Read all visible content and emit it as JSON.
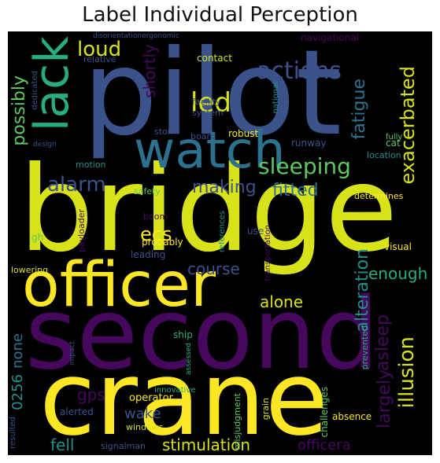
{
  "title": "Label Individual Perception",
  "palette": {
    "purple": "#46085c",
    "indigo": "#3b528b",
    "blue": "#2c728e",
    "teal": "#21908d",
    "green": "#27ad81",
    "lime": "#5ec962",
    "yellow": "#d8e219",
    "bright": "#fde725"
  },
  "words": {
    "pilot": "pilot",
    "bridge": "bridge",
    "second": "second",
    "crane": "crane",
    "officer": "officer",
    "watch": "watch",
    "lack": "lack",
    "sleeping": "sleeping",
    "actions": "actions",
    "led": "led",
    "loud": "loud",
    "shortly": "shortly",
    "alarm": "alarm",
    "making": "making",
    "fitted": "fitted",
    "fatigue": "fatigue",
    "exacerbated": "exacerbated",
    "possibly": "possibly",
    "ecs": "ecs",
    "course": "course",
    "alone": "alone",
    "enough": "enough",
    "alteration": "alteration",
    "asleep": "asleep",
    "illusion": "illusion",
    "largely": "largely",
    "gps": "gps",
    "wake": "wake",
    "fell": "fell",
    "stimulation": "stimulation",
    "officera": "officera",
    "none": "none",
    "num0256": "0256",
    "navigational": "navigational",
    "disorientationergonomic": "disorientationergonomic",
    "relative": "relative",
    "contact": "contact",
    "facility": "facility",
    "system": "system",
    "national": "national",
    "fully": "fully",
    "cat": "cat",
    "location": "location",
    "runway": "runway",
    "robust": "robust",
    "board": "board",
    "storm": "storm",
    "dedicated": "dedicated",
    "design": "design",
    "motion": "motion",
    "safety": "safety",
    "determines": "determines",
    "boom": "boom",
    "payloader": "payloader",
    "gh": "gh",
    "probably": "probably",
    "leading": "leading",
    "use": "use",
    "references": "references",
    "transportation": "transportation",
    "visual": "visual",
    "lowering": "lowering",
    "impact": "impact",
    "ship": "ship",
    "assessed": "assessed",
    "prevented": "prevented",
    "innovative": "innovative",
    "operator": "operator",
    "misjudgment": "misjudgment",
    "grain": "grain",
    "challenges": "challenges",
    "absence": "absence",
    "resulted": "resulted",
    "alerted": "alerted",
    "windows": "windows",
    "signalman": "signalman"
  }
}
